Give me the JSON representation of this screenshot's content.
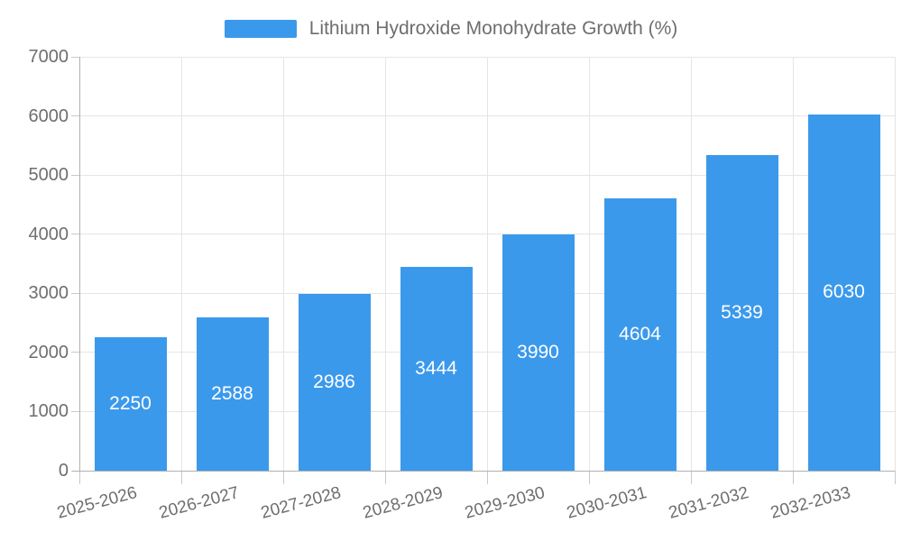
{
  "chart_data": {
    "type": "bar",
    "title": "Lithium Hydroxide Monohydrate Growth (%)",
    "categories": [
      "2025-2026",
      "2026-2027",
      "2027-2028",
      "2028-2029",
      "2029-2030",
      "2030-2031",
      "2031-2032",
      "2032-2033"
    ],
    "values": [
      2250,
      2588,
      2986,
      3444,
      3990,
      4604,
      5339,
      6030
    ],
    "series": [
      {
        "name": "Lithium Hydroxide Monohydrate Growth (%)",
        "values": [
          2250,
          2588,
          2986,
          3444,
          3990,
          4604,
          5339,
          6030
        ]
      }
    ],
    "xlabel": "",
    "ylabel": "",
    "ylim": [
      0,
      7000
    ],
    "y_ticks": [
      0,
      1000,
      2000,
      3000,
      4000,
      5000,
      6000,
      7000
    ],
    "grid": true,
    "legend_position": "top-center",
    "value_labels_shown": true,
    "colors": {
      "bar": "#3b99ec",
      "value_label": "#ffffff",
      "axis_text": "#6e6e6e",
      "gridline": "#e5e5e5",
      "axis_line": "#b0b0b0",
      "tick": "#c9c9c9",
      "background": "#ffffff"
    }
  }
}
